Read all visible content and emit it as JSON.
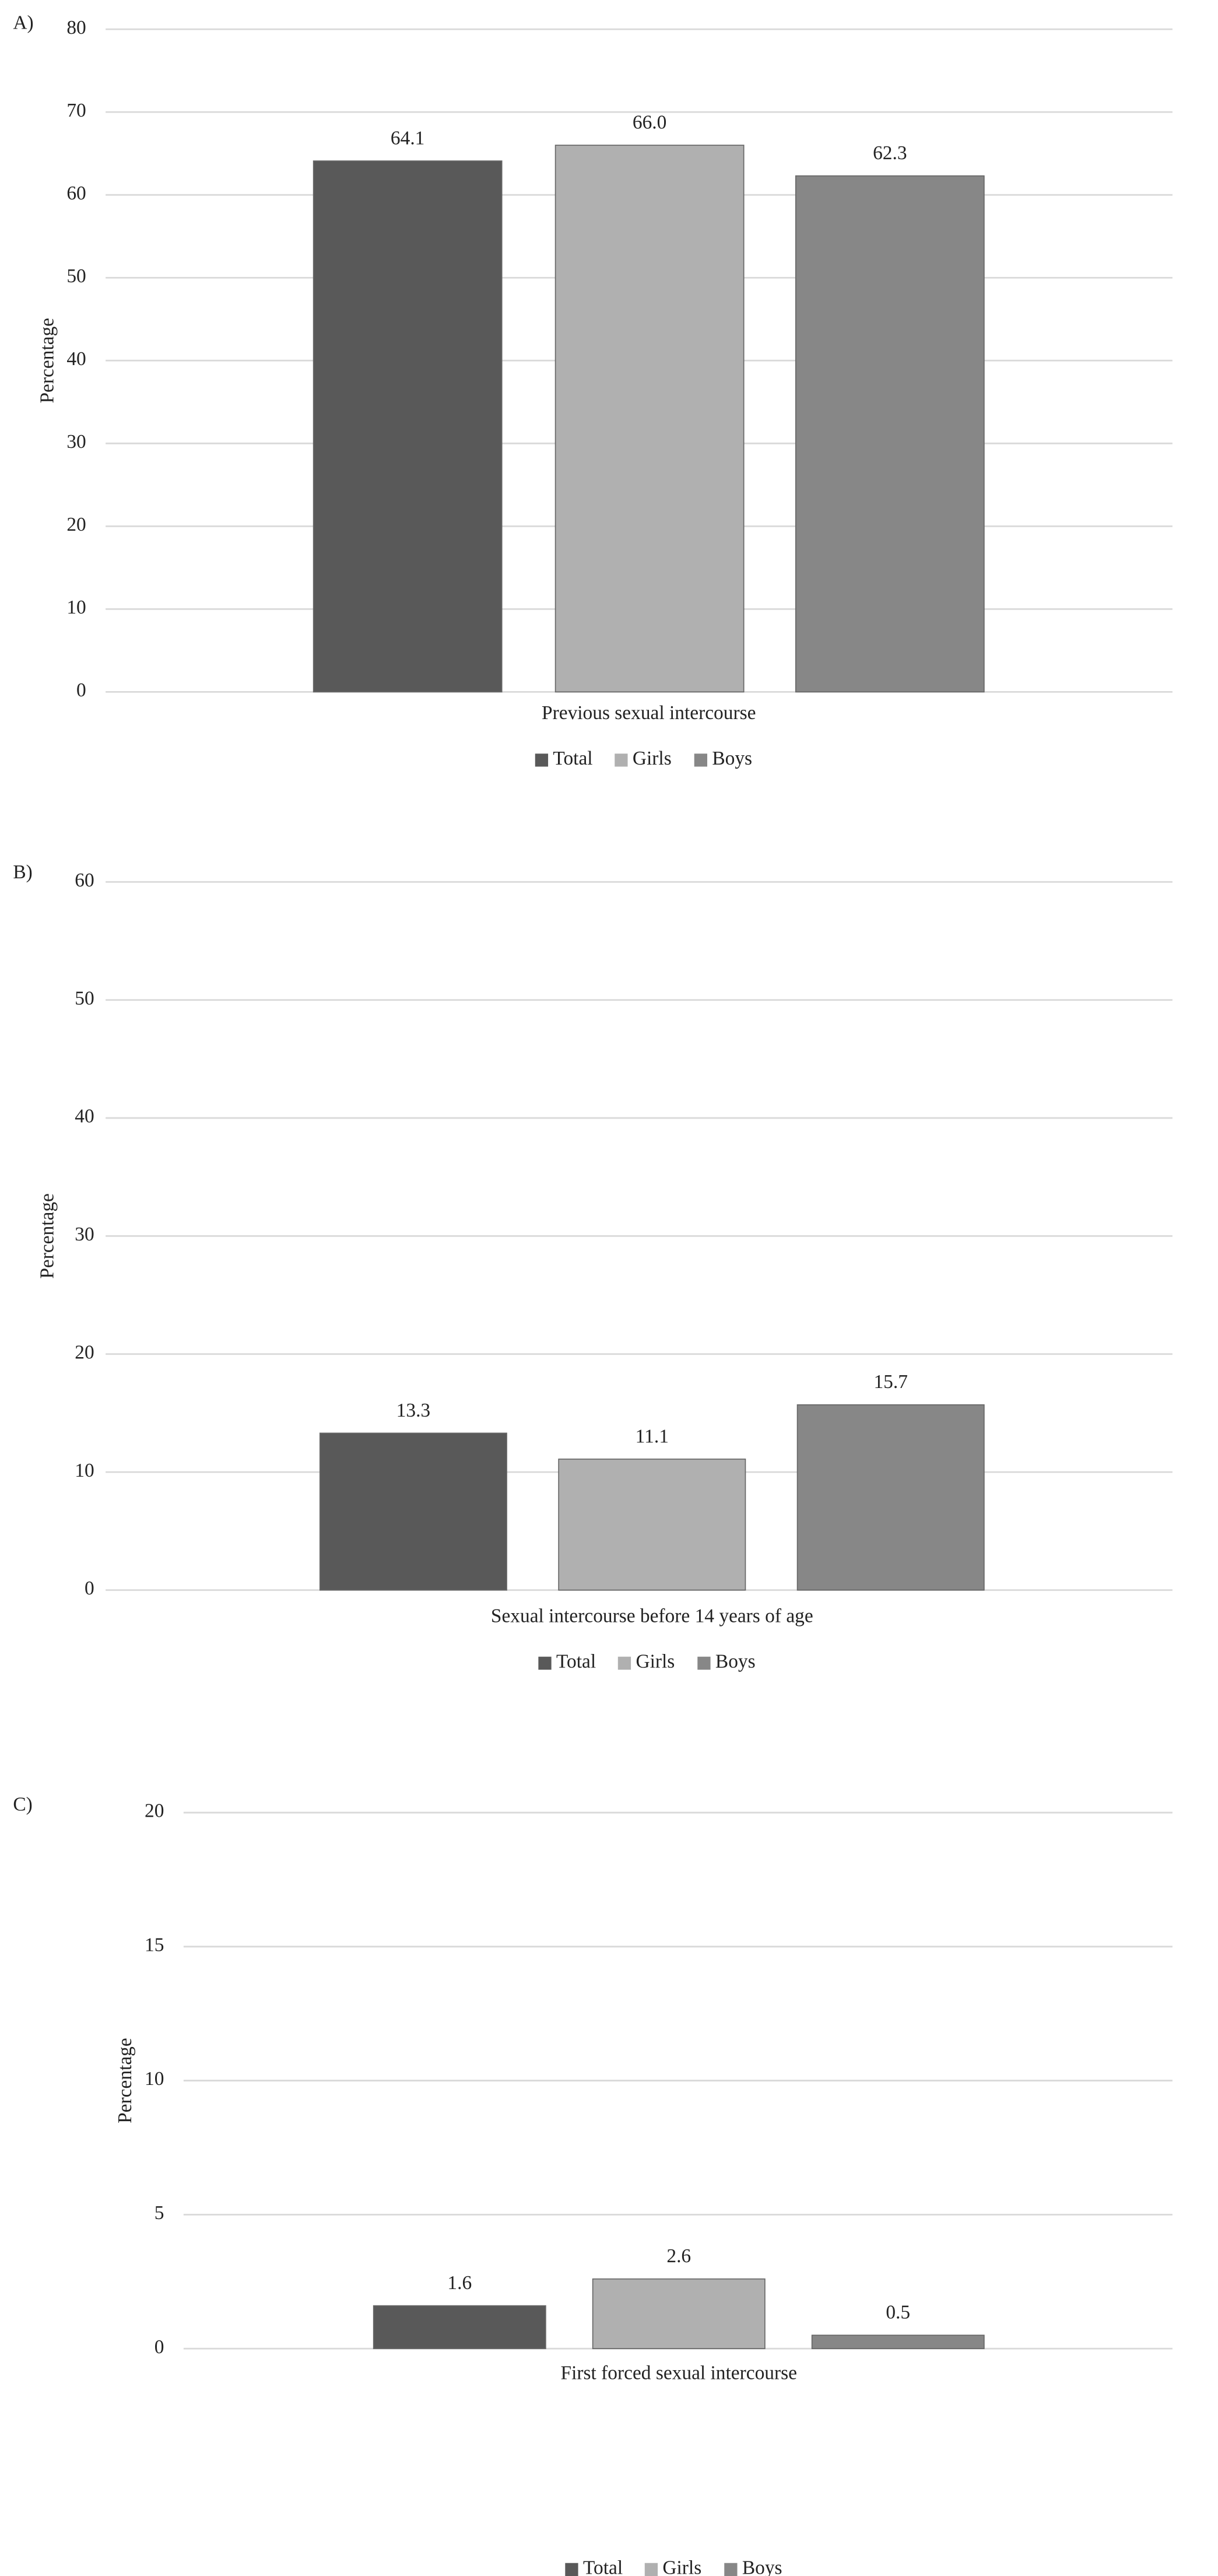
{
  "chart_data": [
    {
      "type": "bar",
      "panel_label": "A)",
      "y_label": "Percentage",
      "categories": [
        "Previous sexual intercourse"
      ],
      "series": [
        {
          "name": "Total",
          "color": "#595959",
          "values": [
            64.1
          ],
          "value_labels": [
            "64.1"
          ]
        },
        {
          "name": "Girls",
          "color": "#b0b0b0",
          "values": [
            66.0
          ],
          "value_labels": [
            "66.0"
          ]
        },
        {
          "name": "Boys",
          "color": "#878787",
          "values": [
            62.3
          ],
          "value_labels": [
            "62.3"
          ]
        }
      ],
      "ylim": [
        0,
        80
      ],
      "yticks": [
        0,
        10,
        20,
        30,
        40,
        50,
        60,
        70,
        80
      ],
      "grid": true,
      "legend": "bottom"
    },
    {
      "type": "bar",
      "panel_label": "B)",
      "y_label": "Percentage",
      "categories": [
        "Sexual intercourse before 14 years of age"
      ],
      "series": [
        {
          "name": "Total",
          "color": "#595959",
          "values": [
            13.3
          ],
          "value_labels": [
            "13.3"
          ]
        },
        {
          "name": "Girls",
          "color": "#b0b0b0",
          "values": [
            11.1
          ],
          "value_labels": [
            "11.1"
          ]
        },
        {
          "name": "Boys",
          "color": "#878787",
          "values": [
            15.7
          ],
          "value_labels": [
            "15.7"
          ]
        }
      ],
      "ylim": [
        0,
        60
      ],
      "yticks": [
        0,
        10,
        20,
        30,
        40,
        50,
        60
      ],
      "grid": true,
      "legend": "bottom"
    },
    {
      "type": "bar",
      "panel_label": "C)",
      "y_label": "Percentage",
      "categories": [
        "First forced sexual intercourse"
      ],
      "series": [
        {
          "name": "Total",
          "color": "#595959",
          "values": [
            1.6
          ],
          "value_labels": [
            "1.6"
          ]
        },
        {
          "name": "Girls",
          "color": "#b0b0b0",
          "values": [
            2.6
          ],
          "value_labels": [
            "2.6"
          ]
        },
        {
          "name": "Boys",
          "color": "#878787",
          "values": [
            0.5
          ],
          "value_labels": [
            "0.5"
          ]
        }
      ],
      "ylim": [
        0,
        20
      ],
      "yticks": [
        0,
        5,
        10,
        15,
        20
      ],
      "grid": true,
      "legend": "bottom"
    }
  ]
}
